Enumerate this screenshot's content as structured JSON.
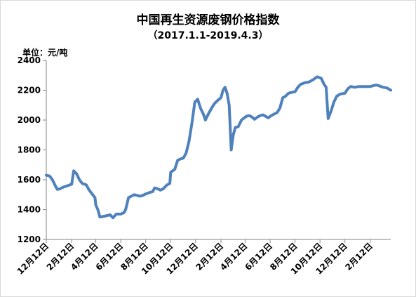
{
  "chart_data": {
    "type": "line",
    "title": "中国再生资源废钢价格指数",
    "subtitle": "（2017.1.1-2019.4.3）",
    "unit_label": "单位：元/吨",
    "xlabel": "",
    "ylabel": "",
    "ylim": [
      1200,
      2400
    ],
    "yticks": [
      1200,
      1400,
      1600,
      1800,
      2000,
      2200,
      2400
    ],
    "x_range": [
      "2016-12-12",
      "2019-04-03"
    ],
    "xticks": [
      {
        "label": "12月12日",
        "date": "2016-12-12"
      },
      {
        "label": "2月12日",
        "date": "2017-02-12"
      },
      {
        "label": "4月12日",
        "date": "2017-04-12"
      },
      {
        "label": "6月12日",
        "date": "2017-06-12"
      },
      {
        "label": "8月12日",
        "date": "2017-08-12"
      },
      {
        "label": "10月12日",
        "date": "2017-10-12"
      },
      {
        "label": "12月12日",
        "date": "2017-12-12"
      },
      {
        "label": "2月12日",
        "date": "2018-02-12"
      },
      {
        "label": "4月12日",
        "date": "2018-04-12"
      },
      {
        "label": "6月12日",
        "date": "2018-06-12"
      },
      {
        "label": "8月12日",
        "date": "2018-08-12"
      },
      {
        "label": "10月12日",
        "date": "2018-10-12"
      },
      {
        "label": "12月12日",
        "date": "2018-12-12"
      },
      {
        "label": "2月12日",
        "date": "2019-02-12"
      }
    ],
    "grid": false,
    "legend": "none",
    "line_color": "#4f81bd",
    "series": [
      {
        "name": "",
        "points": [
          [
            "2016-12-12",
            1630
          ],
          [
            "2016-12-20",
            1625
          ],
          [
            "2016-12-27",
            1600
          ],
          [
            "2017-01-03",
            1560
          ],
          [
            "2017-01-08",
            1535
          ],
          [
            "2017-01-15",
            1540
          ],
          [
            "2017-01-22",
            1550
          ],
          [
            "2017-02-02",
            1560
          ],
          [
            "2017-02-12",
            1570
          ],
          [
            "2017-02-17",
            1660
          ],
          [
            "2017-02-24",
            1640
          ],
          [
            "2017-03-03",
            1600
          ],
          [
            "2017-03-10",
            1575
          ],
          [
            "2017-03-20",
            1565
          ],
          [
            "2017-03-27",
            1530
          ],
          [
            "2017-04-03",
            1505
          ],
          [
            "2017-04-10",
            1480
          ],
          [
            "2017-04-12",
            1430
          ],
          [
            "2017-04-17",
            1400
          ],
          [
            "2017-04-22",
            1350
          ],
          [
            "2017-05-01",
            1355
          ],
          [
            "2017-05-10",
            1360
          ],
          [
            "2017-05-17",
            1365
          ],
          [
            "2017-05-24",
            1345
          ],
          [
            "2017-06-01",
            1370
          ],
          [
            "2017-06-12",
            1370
          ],
          [
            "2017-06-20",
            1380
          ],
          [
            "2017-06-24",
            1400
          ],
          [
            "2017-07-01",
            1480
          ],
          [
            "2017-07-08",
            1490
          ],
          [
            "2017-07-15",
            1500
          ],
          [
            "2017-07-22",
            1495
          ],
          [
            "2017-07-29",
            1490
          ],
          [
            "2017-08-05",
            1495
          ],
          [
            "2017-08-12",
            1505
          ],
          [
            "2017-08-22",
            1515
          ],
          [
            "2017-08-29",
            1520
          ],
          [
            "2017-09-03",
            1545
          ],
          [
            "2017-09-10",
            1540
          ],
          [
            "2017-09-17",
            1530
          ],
          [
            "2017-09-24",
            1540
          ],
          [
            "2017-10-03",
            1565
          ],
          [
            "2017-10-10",
            1575
          ],
          [
            "2017-10-12",
            1650
          ],
          [
            "2017-10-22",
            1670
          ],
          [
            "2017-10-29",
            1730
          ],
          [
            "2017-11-05",
            1740
          ],
          [
            "2017-11-12",
            1745
          ],
          [
            "2017-11-19",
            1780
          ],
          [
            "2017-11-26",
            1860
          ],
          [
            "2017-12-03",
            1980
          ],
          [
            "2017-12-10",
            2120
          ],
          [
            "2017-12-17",
            2140
          ],
          [
            "2017-12-24",
            2080
          ],
          [
            "2017-12-31",
            2040
          ],
          [
            "2018-01-05",
            2000
          ],
          [
            "2018-01-12",
            2040
          ],
          [
            "2018-01-20",
            2080
          ],
          [
            "2018-01-27",
            2110
          ],
          [
            "2018-02-03",
            2130
          ],
          [
            "2018-02-12",
            2150
          ],
          [
            "2018-02-17",
            2200
          ],
          [
            "2018-02-22",
            2220
          ],
          [
            "2018-02-27",
            2180
          ],
          [
            "2018-03-04",
            2100
          ],
          [
            "2018-03-09",
            1800
          ],
          [
            "2018-03-14",
            1900
          ],
          [
            "2018-03-19",
            1950
          ],
          [
            "2018-03-26",
            1955
          ],
          [
            "2018-04-03",
            2000
          ],
          [
            "2018-04-10",
            2015
          ],
          [
            "2018-04-15",
            2025
          ],
          [
            "2018-04-22",
            2030
          ],
          [
            "2018-04-29",
            2020
          ],
          [
            "2018-05-05",
            2005
          ],
          [
            "2018-05-12",
            2020
          ],
          [
            "2018-05-19",
            2030
          ],
          [
            "2018-05-26",
            2035
          ],
          [
            "2018-06-01",
            2025
          ],
          [
            "2018-06-08",
            2015
          ],
          [
            "2018-06-15",
            2030
          ],
          [
            "2018-06-22",
            2040
          ],
          [
            "2018-06-29",
            2050
          ],
          [
            "2018-07-06",
            2080
          ],
          [
            "2018-07-13",
            2150
          ],
          [
            "2018-07-20",
            2160
          ],
          [
            "2018-07-27",
            2180
          ],
          [
            "2018-08-03",
            2185
          ],
          [
            "2018-08-12",
            2190
          ],
          [
            "2018-08-19",
            2220
          ],
          [
            "2018-08-26",
            2240
          ],
          [
            "2018-09-05",
            2250
          ],
          [
            "2018-09-15",
            2255
          ],
          [
            "2018-09-25",
            2270
          ],
          [
            "2018-10-05",
            2290
          ],
          [
            "2018-10-15",
            2280
          ],
          [
            "2018-10-22",
            2240
          ],
          [
            "2018-10-27",
            2220
          ],
          [
            "2018-11-01",
            2010
          ],
          [
            "2018-11-08",
            2060
          ],
          [
            "2018-11-15",
            2120
          ],
          [
            "2018-11-22",
            2160
          ],
          [
            "2018-12-01",
            2175
          ],
          [
            "2018-12-12",
            2180
          ],
          [
            "2018-12-19",
            2210
          ],
          [
            "2018-12-26",
            2225
          ],
          [
            "2019-01-05",
            2220
          ],
          [
            "2019-01-15",
            2225
          ],
          [
            "2019-01-25",
            2225
          ],
          [
            "2019-02-05",
            2225
          ],
          [
            "2019-02-12",
            2225
          ],
          [
            "2019-02-19",
            2230
          ],
          [
            "2019-02-26",
            2235
          ],
          [
            "2019-03-05",
            2230
          ],
          [
            "2019-03-15",
            2220
          ],
          [
            "2019-03-25",
            2215
          ],
          [
            "2019-04-03",
            2200
          ]
        ]
      }
    ]
  }
}
